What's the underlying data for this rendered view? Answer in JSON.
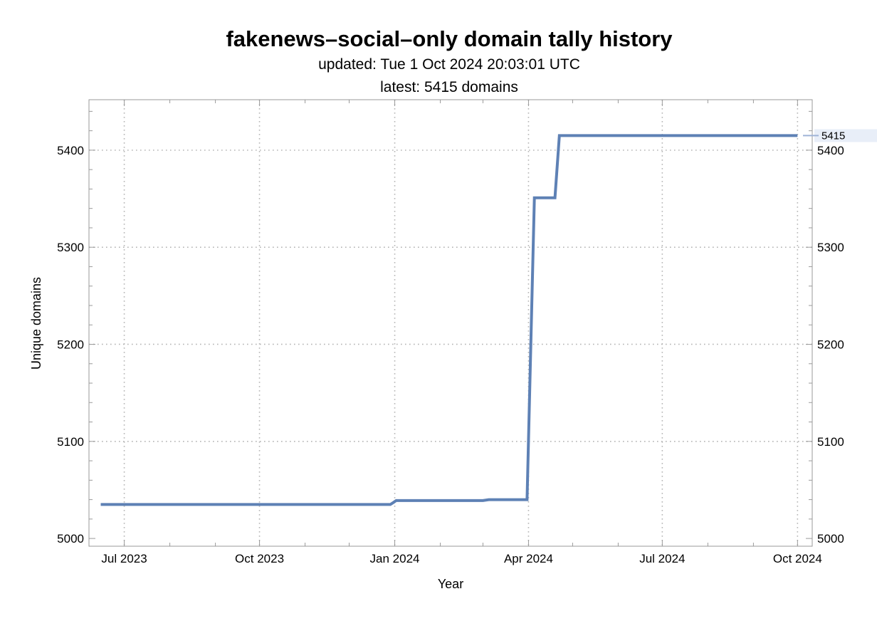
{
  "chart_data": {
    "type": "line",
    "title": "fakenews–social–only domain tally history",
    "subtitle_updated": "updated: Tue 1 Oct 2024 20:03:01 UTC",
    "subtitle_latest": "latest: 5415 domains",
    "xlabel": "Year",
    "ylabel": "Unique domains",
    "grid": true,
    "xlim": [
      "2023-06-07",
      "2024-10-11"
    ],
    "ylim": [
      4992,
      5452
    ],
    "x_ticks": [
      {
        "date": "2023-07-01",
        "label": "Jul 2023"
      },
      {
        "date": "2023-10-01",
        "label": "Oct 2023"
      },
      {
        "date": "2024-01-01",
        "label": "Jan 2024"
      },
      {
        "date": "2024-04-01",
        "label": "Apr 2024"
      },
      {
        "date": "2024-07-01",
        "label": "Jul 2024"
      },
      {
        "date": "2024-10-01",
        "label": "Oct 2024"
      }
    ],
    "x_minor_ticks": [
      "2023-08-01",
      "2023-09-01",
      "2023-11-01",
      "2023-12-01",
      "2024-02-01",
      "2024-03-01",
      "2024-05-01",
      "2024-06-01",
      "2024-08-01",
      "2024-09-01"
    ],
    "y_ticks_left": [
      5000,
      5100,
      5200,
      5300,
      5400
    ],
    "y_ticks_right": [
      5000,
      5100,
      5200,
      5300,
      5400
    ],
    "y_grid": [
      5100,
      5200,
      5300,
      5400
    ],
    "series": [
      {
        "name": "Unique domains",
        "color": "#5e81b5",
        "x": [
          "2023-06-15",
          "2023-12-29",
          "2023-12-31",
          "2024-01-02",
          "2024-03-01",
          "2024-03-05",
          "2024-03-31",
          "2024-04-05",
          "2024-04-19",
          "2024-04-22",
          "2024-04-28",
          "2024-10-01"
        ],
        "y": [
          5035,
          5035,
          5037,
          5039,
          5039,
          5040,
          5040,
          5351,
          5351,
          5415,
          5415,
          5415
        ]
      }
    ],
    "latest_callout": {
      "value": 5415,
      "label": "5415"
    }
  }
}
